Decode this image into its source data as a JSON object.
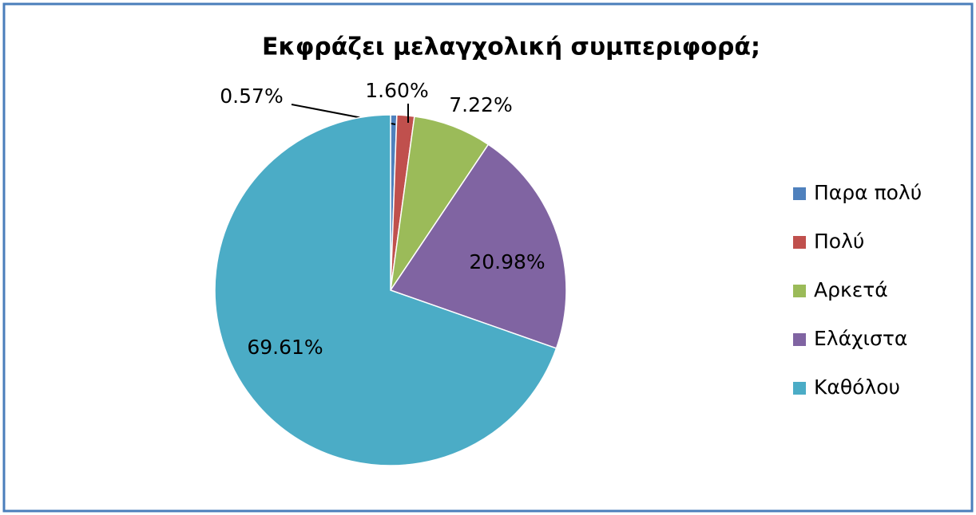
{
  "chart_data": {
    "type": "pie",
    "title": "Εκφράζει μελαγχολική συμπεριφορά;",
    "categories": [
      "Παρα πολύ",
      "Πολύ",
      "Αρκετά",
      "Ελάχιστα",
      "Καθόλου"
    ],
    "values": [
      0.57,
      1.6,
      7.22,
      20.98,
      69.61
    ],
    "value_labels": [
      "0.57%",
      "1.60%",
      "7.22%",
      "20.98%",
      "69.61%"
    ],
    "colors": [
      "#4f81bd",
      "#c0504d",
      "#9bbb59",
      "#8064a2",
      "#4bacc6"
    ],
    "legend": "right"
  }
}
